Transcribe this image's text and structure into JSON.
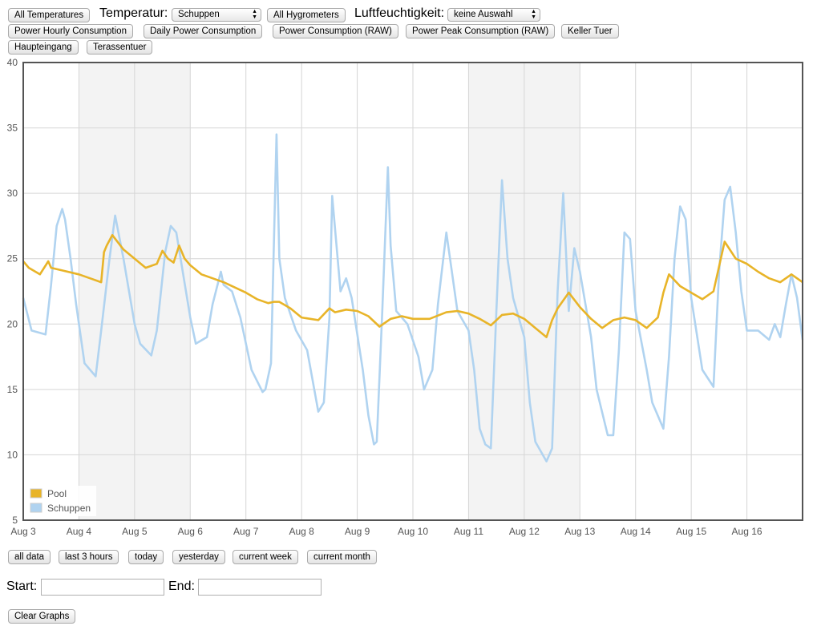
{
  "toolbar": {
    "all_temperatures": "All Temperatures",
    "temp_label": "Temperatur:",
    "temp_selected": "Schuppen",
    "all_hygrometers": "All Hygrometers",
    "humidity_label": "Luftfeuchtigkeit:",
    "humidity_selected": "keine Auswahl",
    "power_hourly": "Power Hourly Consumption",
    "daily_power": "Daily Power Consumption",
    "power_raw": "Power Consumption (RAW)",
    "power_peak_raw": "Power Peak Consumption (RAW)",
    "keller_tuer": "Keller Tuer",
    "haupteingang": "Haupteingang",
    "terassentuer": "Terassentuer"
  },
  "ranges": {
    "all_data": "all data",
    "last_3_hours": "last 3 hours",
    "today": "today",
    "yesterday": "yesterday",
    "current_week": "current week",
    "current_month": "current month"
  },
  "date_filter": {
    "start_label": "Start:",
    "start_value": "",
    "end_label": "End:",
    "end_value": ""
  },
  "clear_graphs": "Clear Graphs",
  "chart_data": {
    "type": "line",
    "title": "",
    "xlabel": "",
    "ylabel": "",
    "ylim": [
      5,
      40
    ],
    "xlim": [
      0,
      14.0
    ],
    "x_tick_labels": [
      "Aug 3",
      "Aug 4",
      "Aug 5",
      "Aug 6",
      "Aug 7",
      "Aug 8",
      "Aug 9",
      "Aug 10",
      "Aug 11",
      "Aug 12",
      "Aug 13",
      "Aug 14",
      "Aug 15",
      "Aug 16"
    ],
    "y_ticks": [
      5,
      10,
      15,
      20,
      25,
      30,
      35,
      40
    ],
    "x_unit": "days since Aug 3",
    "grid": true,
    "weekend_shading": [
      [
        1,
        3
      ],
      [
        8,
        10
      ]
    ],
    "legend_position": "bottom-left",
    "series": [
      {
        "name": "Pool",
        "color": "#e8b428",
        "x": [
          0,
          0.1,
          0.3,
          0.45,
          0.5,
          0.7,
          1.0,
          1.2,
          1.4,
          1.45,
          1.5,
          1.6,
          1.8,
          2.0,
          2.2,
          2.4,
          2.5,
          2.6,
          2.7,
          2.8,
          2.9,
          3.0,
          3.2,
          3.4,
          3.6,
          3.8,
          4.0,
          4.2,
          4.4,
          4.5,
          4.6,
          4.8,
          5.0,
          5.3,
          5.5,
          5.6,
          5.8,
          6.0,
          6.2,
          6.4,
          6.6,
          6.8,
          7.0,
          7.3,
          7.6,
          7.8,
          8.0,
          8.2,
          8.4,
          8.6,
          8.8,
          9.0,
          9.2,
          9.4,
          9.5,
          9.6,
          9.8,
          10.0,
          10.2,
          10.4,
          10.6,
          10.8,
          11.0,
          11.2,
          11.4,
          11.5,
          11.6,
          11.8,
          12.0,
          12.2,
          12.4,
          12.6,
          12.8,
          13.0,
          13.2,
          13.4,
          13.6,
          13.8,
          14.0
        ],
        "y": [
          24.8,
          24.3,
          23.8,
          24.8,
          24.3,
          24.1,
          23.8,
          23.5,
          23.2,
          25.5,
          26.0,
          26.8,
          25.7,
          25.0,
          24.3,
          24.6,
          25.6,
          25.0,
          24.7,
          26.0,
          25.0,
          24.5,
          23.8,
          23.5,
          23.2,
          22.8,
          22.4,
          21.9,
          21.6,
          21.7,
          21.7,
          21.2,
          20.5,
          20.3,
          21.2,
          20.9,
          21.1,
          21.0,
          20.6,
          19.8,
          20.4,
          20.6,
          20.4,
          20.4,
          20.9,
          21.0,
          20.8,
          20.4,
          19.9,
          20.7,
          20.8,
          20.4,
          19.7,
          19.0,
          20.3,
          21.2,
          22.4,
          21.3,
          20.4,
          19.7,
          20.3,
          20.5,
          20.3,
          19.7,
          20.5,
          22.4,
          23.8,
          22.9,
          22.4,
          21.9,
          22.5,
          26.3,
          25.0,
          24.6,
          24.0,
          23.5,
          23.2,
          23.8,
          23.2
        ]
      },
      {
        "name": "Schuppen",
        "color": "#b0d3f0",
        "x": [
          0,
          0.15,
          0.4,
          0.5,
          0.6,
          0.7,
          0.75,
          0.85,
          0.95,
          1.1,
          1.3,
          1.4,
          1.55,
          1.65,
          1.8,
          2.0,
          2.1,
          2.3,
          2.4,
          2.55,
          2.65,
          2.75,
          3.0,
          3.1,
          3.3,
          3.4,
          3.55,
          3.6,
          3.75,
          3.9,
          4.1,
          4.3,
          4.35,
          4.45,
          4.55,
          4.6,
          4.7,
          4.9,
          5.1,
          5.3,
          5.4,
          5.5,
          5.55,
          5.7,
          5.8,
          5.9,
          6.1,
          6.2,
          6.3,
          6.35,
          6.45,
          6.55,
          6.6,
          6.7,
          6.9,
          7.1,
          7.2,
          7.35,
          7.45,
          7.6,
          7.7,
          7.8,
          8.0,
          8.1,
          8.2,
          8.3,
          8.4,
          8.5,
          8.6,
          8.7,
          8.8,
          9.0,
          9.1,
          9.2,
          9.4,
          9.5,
          9.6,
          9.7,
          9.8,
          9.9,
          10.0,
          10.2,
          10.3,
          10.5,
          10.6,
          10.7,
          10.8,
          10.9,
          11.0,
          11.2,
          11.3,
          11.5,
          11.6,
          11.7,
          11.8,
          11.9,
          12.0,
          12.2,
          12.4,
          12.5,
          12.6,
          12.7,
          12.8,
          12.9,
          13.0,
          13.2,
          13.4,
          13.5,
          13.6,
          13.7,
          13.8,
          13.9,
          14.0
        ],
        "y": [
          22.0,
          19.5,
          19.2,
          23.0,
          27.5,
          28.8,
          28.0,
          25.0,
          21.5,
          17.0,
          16.0,
          19.5,
          25.0,
          28.3,
          25.0,
          20.0,
          18.5,
          17.6,
          19.5,
          25.5,
          27.5,
          27.0,
          20.5,
          18.5,
          19.0,
          21.5,
          24.0,
          23.0,
          22.5,
          20.5,
          16.5,
          14.8,
          15.0,
          17.0,
          34.5,
          25.0,
          22.0,
          19.5,
          18.0,
          13.3,
          14.0,
          20.5,
          29.8,
          22.5,
          23.5,
          22.0,
          16.5,
          13.0,
          10.8,
          11.0,
          21.0,
          32.0,
          26.0,
          21.0,
          20.0,
          17.5,
          15.0,
          16.5,
          21.5,
          27.0,
          24.0,
          21.0,
          19.5,
          16.5,
          12.0,
          10.8,
          10.5,
          21.0,
          31.0,
          25.0,
          22.0,
          19.0,
          14.0,
          11.0,
          9.5,
          10.5,
          22.5,
          30.0,
          21.0,
          25.8,
          24.0,
          19.0,
          15.0,
          11.5,
          11.5,
          18.0,
          27.0,
          26.5,
          21.0,
          16.5,
          14.0,
          12.0,
          17.5,
          25.0,
          29.0,
          28.0,
          22.0,
          16.5,
          15.2,
          24.0,
          29.5,
          30.5,
          27.0,
          22.5,
          19.5,
          19.5,
          18.8,
          20.0,
          19.0,
          21.5,
          23.8,
          22.0,
          18.8
        ]
      }
    ]
  }
}
